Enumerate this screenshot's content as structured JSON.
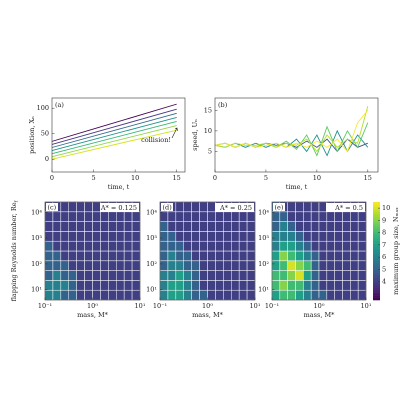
{
  "chart_data": [
    {
      "type": "line",
      "panel": "(a)",
      "xlabel": "time, t",
      "ylabel": "position, Xₙ",
      "annotation": "collision!",
      "x": [
        0,
        15
      ],
      "xlim": [
        0,
        16
      ],
      "ylim": [
        -25,
        120
      ],
      "xticks": [
        0,
        5,
        10,
        15
      ],
      "yticks": [
        0,
        50,
        100
      ],
      "series": [
        {
          "color": "#440154",
          "values": [
            35,
            108
          ]
        },
        {
          "color": "#443983",
          "values": [
            29,
            98
          ]
        },
        {
          "color": "#31688e",
          "values": [
            23,
            90
          ]
        },
        {
          "color": "#21918c",
          "values": [
            17,
            82
          ]
        },
        {
          "color": "#35b779",
          "values": [
            11,
            74
          ]
        },
        {
          "color": "#90d743",
          "values": [
            5,
            66
          ]
        },
        {
          "color": "#d8e219",
          "values": [
            0,
            57
          ]
        }
      ]
    },
    {
      "type": "line",
      "panel": "(b)",
      "xlabel": "time, t",
      "ylabel": "speed, Uₙ",
      "x": [
        0,
        1,
        2,
        3,
        4,
        5,
        6,
        7,
        8,
        9,
        10,
        11,
        12,
        13,
        14,
        15
      ],
      "xlim": [
        0,
        16
      ],
      "ylim": [
        0,
        18
      ],
      "xticks": [
        0,
        5,
        10,
        15
      ],
      "yticks": [
        5,
        10,
        15
      ],
      "series": [
        {
          "color": "#3b528b",
          "values": [
            6.5,
            7,
            6,
            7,
            6,
            7,
            6.5,
            7,
            6,
            7.5,
            6,
            8,
            5,
            8,
            6,
            7
          ]
        },
        {
          "color": "#21918c",
          "values": [
            6.5,
            6,
            7,
            6,
            7,
            6,
            7,
            6,
            8,
            5,
            9,
            4,
            10,
            5,
            9,
            6
          ]
        },
        {
          "color": "#5ec962",
          "values": [
            6.5,
            7,
            6,
            7,
            6,
            7,
            6,
            7.5,
            5.5,
            9,
            4,
            11,
            5,
            10,
            6,
            12
          ]
        },
        {
          "color": "#b5de2b",
          "values": [
            6.5,
            6,
            7,
            6.5,
            6.5,
            7,
            6,
            7,
            6.5,
            8,
            5,
            9,
            6,
            8,
            7,
            16
          ]
        },
        {
          "color": "#fde725",
          "values": [
            6.5,
            7,
            6,
            7,
            6,
            6.5,
            7,
            6,
            7,
            6,
            7.5,
            6,
            8,
            5,
            12,
            15
          ]
        }
      ]
    },
    {
      "type": "heatmap",
      "panel": "(c)",
      "title": "A* = 0.125",
      "xlabel": "mass, M*",
      "ylabel": "flapping Reynolds number, Re",
      "ylabel_sub": "f",
      "xscale": "log",
      "yscale": "log",
      "xlim": [
        0.1,
        10
      ],
      "ylim": [
        4,
        25000
      ],
      "colormap": "viridis",
      "clim": [
        2.5,
        10.5
      ],
      "xticks": [
        {
          "value": 0.1,
          "label": "10⁻¹"
        },
        {
          "value": 1,
          "label": "10⁰"
        },
        {
          "value": 10,
          "label": "10¹"
        }
      ],
      "yticks": [
        {
          "value": 10,
          "label": "10¹"
        },
        {
          "value": 100,
          "label": "10²"
        },
        {
          "value": 1000,
          "label": "10³"
        },
        {
          "value": 10000,
          "label": "10⁴"
        }
      ],
      "z": [
        [
          6,
          6,
          5,
          5,
          4,
          4,
          4,
          4,
          4,
          4,
          4,
          4
        ],
        [
          6,
          6,
          6,
          5,
          4,
          4,
          4,
          4,
          4,
          4,
          4,
          4
        ],
        [
          5,
          6,
          5,
          5,
          4,
          4,
          4,
          4,
          4,
          4,
          4,
          4
        ],
        [
          5,
          5,
          5,
          4,
          4,
          4,
          4,
          4,
          4,
          4,
          4,
          4
        ],
        [
          5,
          5,
          4,
          4,
          4,
          4,
          4,
          4,
          4,
          4,
          4,
          4
        ],
        [
          5,
          4,
          4,
          4,
          4,
          4,
          4,
          4,
          4,
          4,
          4,
          4
        ],
        [
          4,
          4,
          4,
          4,
          4,
          4,
          4,
          4,
          4,
          4,
          4,
          4
        ],
        [
          4,
          4,
          4,
          4,
          4,
          4,
          4,
          4,
          4,
          4,
          4,
          4
        ],
        [
          4,
          4,
          4,
          4,
          4,
          4,
          4,
          4,
          4,
          4,
          4,
          4
        ],
        [
          4,
          4,
          4,
          4,
          4,
          4,
          4,
          4,
          4,
          4,
          4,
          4
        ]
      ]
    },
    {
      "type": "heatmap",
      "panel": "(d)",
      "title": "A* = 0.25",
      "xlabel": "mass, M*",
      "xscale": "log",
      "yscale": "log",
      "xlim": [
        0.1,
        10
      ],
      "ylim": [
        4,
        25000
      ],
      "colormap": "viridis",
      "clim": [
        2.5,
        10.5
      ],
      "xticks": [
        {
          "value": 0.1,
          "label": "10⁻¹"
        },
        {
          "value": 1,
          "label": "10⁰"
        },
        {
          "value": 10,
          "label": "10¹"
        }
      ],
      "yticks": [
        {
          "value": 10,
          "label": "10¹"
        },
        {
          "value": 100,
          "label": "10²"
        },
        {
          "value": 1000,
          "label": "10³"
        },
        {
          "value": 10000,
          "label": "10⁴"
        }
      ],
      "z": [
        [
          6,
          7,
          7,
          6,
          5,
          5,
          4,
          4,
          4,
          4,
          4,
          4
        ],
        [
          6,
          7,
          7,
          6,
          5,
          4,
          4,
          4,
          4,
          4,
          4,
          4
        ],
        [
          6,
          6,
          7,
          6,
          5,
          4,
          4,
          4,
          4,
          4,
          4,
          4
        ],
        [
          5,
          6,
          6,
          5,
          5,
          4,
          4,
          4,
          4,
          4,
          4,
          4
        ],
        [
          5,
          6,
          5,
          5,
          4,
          4,
          4,
          4,
          4,
          4,
          4,
          4
        ],
        [
          5,
          5,
          5,
          4,
          4,
          4,
          4,
          4,
          4,
          4,
          4,
          4
        ],
        [
          5,
          5,
          4,
          4,
          4,
          4,
          4,
          4,
          4,
          4,
          4,
          4
        ],
        [
          5,
          4,
          4,
          4,
          4,
          4,
          4,
          4,
          4,
          4,
          4,
          4
        ],
        [
          4,
          4,
          4,
          4,
          4,
          4,
          4,
          4,
          4,
          4,
          4,
          4
        ],
        [
          4,
          4,
          4,
          4,
          4,
          4,
          4,
          4,
          4,
          4,
          4,
          4
        ]
      ]
    },
    {
      "type": "heatmap",
      "panel": "(e)",
      "title": "A* = 0.5",
      "xlabel": "mass, M*",
      "xscale": "log",
      "yscale": "log",
      "xlim": [
        0.1,
        10
      ],
      "ylim": [
        4,
        25000
      ],
      "colormap": "viridis",
      "clim": [
        2.5,
        10.5
      ],
      "xticks": [
        {
          "value": 0.1,
          "label": "10⁻¹"
        },
        {
          "value": 1,
          "label": "10⁰"
        },
        {
          "value": 10,
          "label": "10¹"
        }
      ],
      "yticks": [
        {
          "value": 10,
          "label": "10¹"
        },
        {
          "value": 100,
          "label": "10²"
        },
        {
          "value": 1000,
          "label": "10³"
        },
        {
          "value": 10000,
          "label": "10⁴"
        }
      ],
      "colorbar_label": "maximum group size, Nₘₐₓ",
      "colorbar_ticks": [
        4,
        5,
        6,
        7,
        8,
        9,
        10
      ],
      "z": [
        [
          7,
          8,
          8,
          7,
          6,
          5,
          5,
          4,
          4,
          4,
          4,
          4
        ],
        [
          8,
          9,
          8,
          8,
          6,
          5,
          4,
          4,
          4,
          4,
          4,
          4
        ],
        [
          8,
          8,
          9,
          10,
          7,
          5,
          4,
          4,
          4,
          4,
          4,
          4
        ],
        [
          7,
          8,
          10,
          9,
          8,
          5,
          4,
          4,
          4,
          4,
          4,
          4
        ],
        [
          7,
          9,
          8,
          7,
          6,
          5,
          4,
          4,
          4,
          4,
          4,
          4
        ],
        [
          6,
          7,
          7,
          6,
          5,
          4,
          4,
          4,
          4,
          4,
          4,
          4
        ],
        [
          6,
          6,
          6,
          5,
          4,
          4,
          4,
          4,
          4,
          4,
          4,
          4
        ],
        [
          5,
          6,
          5,
          4,
          4,
          4,
          4,
          4,
          4,
          4,
          4,
          4
        ],
        [
          5,
          5,
          4,
          4,
          4,
          4,
          4,
          4,
          4,
          4,
          4,
          4
        ],
        [
          5,
          4,
          4,
          4,
          4,
          4,
          4,
          4,
          4,
          4,
          4,
          4
        ]
      ]
    }
  ]
}
